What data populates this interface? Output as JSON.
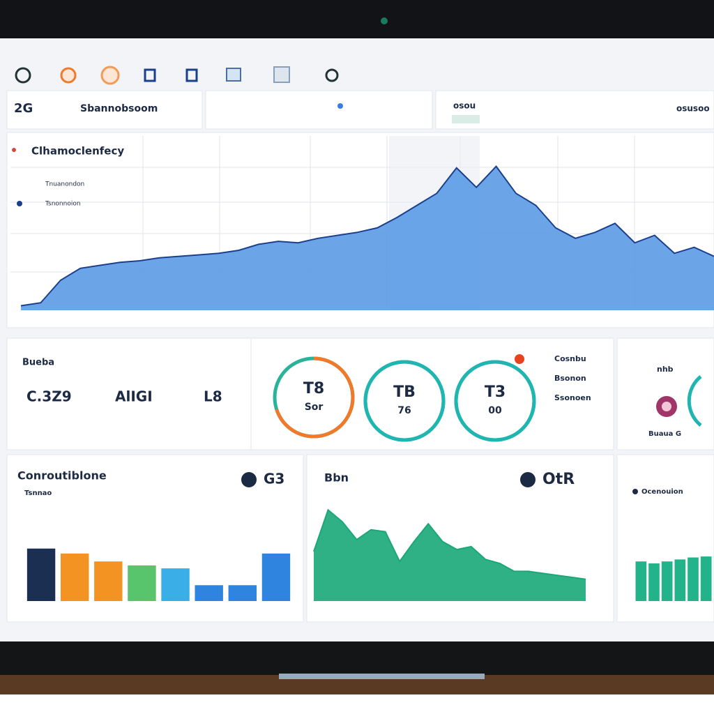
{
  "header": {
    "left_code": "2G",
    "left_title": "Sbannobsoom",
    "middle_label": "osou",
    "right_label": "osusoo"
  },
  "main_chart": {
    "type": "area",
    "title": "Clhamoclenfecy",
    "legend": [
      "Tnuanondon",
      "Tsnonnoion"
    ],
    "color": "#5b9be6",
    "line_color": "#1c3f8c",
    "ylim": [
      0,
      100
    ],
    "values": [
      3,
      5,
      20,
      28,
      30,
      32,
      33,
      35,
      36,
      37,
      38,
      40,
      44,
      46,
      45,
      48,
      50,
      52,
      55,
      62,
      70,
      78,
      95,
      82,
      96,
      78,
      70,
      55,
      48,
      52,
      58,
      45,
      50,
      38,
      42,
      36
    ]
  },
  "kpis": {
    "title": "Bueba",
    "items": [
      "C.3Z9",
      "AlIGI",
      "L8"
    ]
  },
  "gauges": {
    "type": "ring",
    "ylim": [
      0,
      100
    ],
    "items": [
      {
        "top": "T8",
        "bottom": "Sor",
        "value": 70,
        "color": "#f07a2a"
      },
      {
        "top": "TB",
        "bottom": "76",
        "value": 100,
        "color": "#1fb5b0"
      },
      {
        "top": "T3",
        "bottom": "00",
        "value": 100,
        "color": "#1fb5b0"
      }
    ],
    "list": [
      "Cosnbu",
      "Bsonon",
      "Ssonoen"
    ]
  },
  "side": {
    "title": "nhb",
    "label": "Buaua G"
  },
  "bar_chart": {
    "type": "bar",
    "title": "Conroutiblone",
    "subtitle": "Tsnnao",
    "badge": "G3",
    "ylim": [
      0,
      100
    ],
    "values": [
      53,
      48,
      40,
      36,
      33,
      16,
      16,
      48
    ],
    "colors": [
      "#1b2f52",
      "#f39322",
      "#f39322",
      "#58c46b",
      "#3aaee6",
      "#2f84e0",
      "#2f84e0",
      "#2f84e0"
    ]
  },
  "green_chart": {
    "type": "area",
    "title": "Bbn",
    "badge": "OtR",
    "color": "#1aa878",
    "ylim": [
      0,
      100
    ],
    "values": [
      50,
      92,
      80,
      62,
      72,
      70,
      40,
      60,
      78,
      60,
      52,
      55,
      42,
      38,
      30,
      30,
      28,
      26,
      24,
      22
    ]
  },
  "mini_chart": {
    "type": "bar",
    "title": "Ocenouion",
    "color": "#22b38a",
    "ylim": [
      0,
      100
    ],
    "values": [
      40,
      38,
      40,
      42,
      44,
      45
    ]
  }
}
